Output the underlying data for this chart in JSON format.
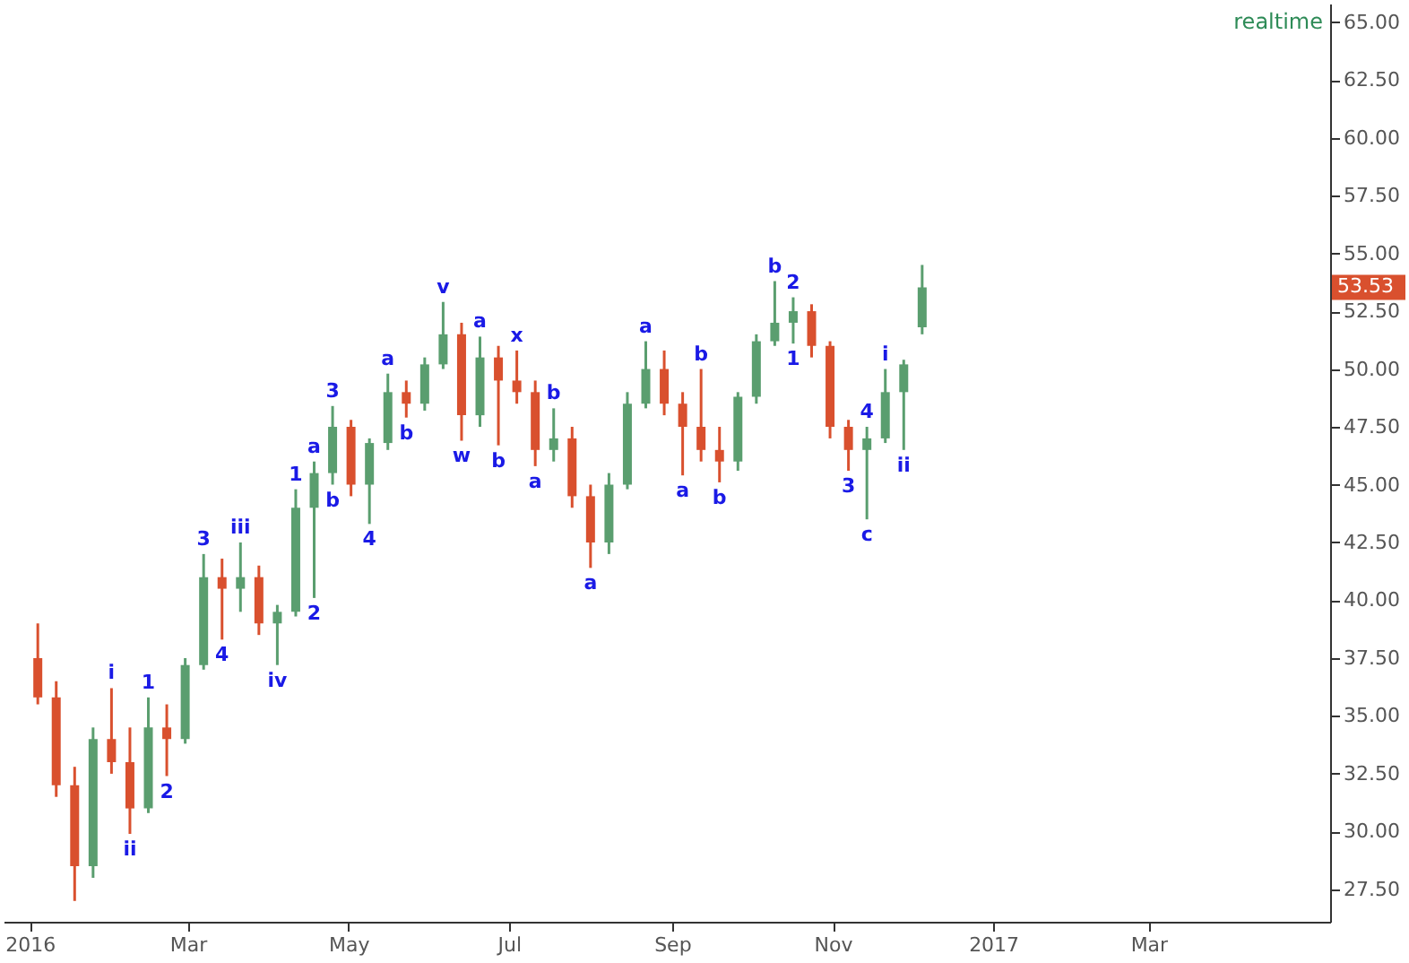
{
  "chart_data": {
    "type": "candlestick",
    "x": [
      "2016-01-04",
      "2016-01-11",
      "2016-01-18",
      "2016-01-25",
      "2016-02-01",
      "2016-02-08",
      "2016-02-15",
      "2016-02-22",
      "2016-02-29",
      "2016-03-07",
      "2016-03-14",
      "2016-03-21",
      "2016-03-28",
      "2016-04-04",
      "2016-04-11",
      "2016-04-18",
      "2016-04-25",
      "2016-05-02",
      "2016-05-09",
      "2016-05-16",
      "2016-05-23",
      "2016-05-30",
      "2016-06-06",
      "2016-06-13",
      "2016-06-20",
      "2016-06-27",
      "2016-07-04",
      "2016-07-11",
      "2016-07-18",
      "2016-07-25",
      "2016-08-01",
      "2016-08-08",
      "2016-08-15",
      "2016-08-22",
      "2016-08-29",
      "2016-09-05",
      "2016-09-12",
      "2016-09-19",
      "2016-09-26",
      "2016-10-03",
      "2016-10-10",
      "2016-10-17",
      "2016-10-24",
      "2016-10-31",
      "2016-11-07",
      "2016-11-14",
      "2016-11-21",
      "2016-11-28",
      "2016-12-05"
    ],
    "ohlc": [
      [
        37.5,
        39.0,
        35.5,
        35.8
      ],
      [
        35.8,
        36.5,
        31.5,
        32.0
      ],
      [
        32.0,
        32.8,
        27.0,
        28.5
      ],
      [
        28.5,
        34.5,
        28.0,
        34.0
      ],
      [
        34.0,
        36.2,
        32.5,
        33.0
      ],
      [
        33.0,
        34.5,
        29.9,
        31.0
      ],
      [
        31.0,
        35.8,
        30.8,
        34.5
      ],
      [
        34.5,
        35.5,
        32.4,
        34.0
      ],
      [
        34.0,
        37.5,
        33.8,
        37.2
      ],
      [
        37.2,
        42.0,
        37.0,
        41.0
      ],
      [
        41.0,
        41.8,
        38.3,
        40.5
      ],
      [
        40.5,
        42.5,
        39.5,
        41.0
      ],
      [
        41.0,
        41.5,
        38.5,
        39.0
      ],
      [
        39.0,
        39.8,
        37.2,
        39.5
      ],
      [
        39.5,
        44.8,
        39.3,
        44.0
      ],
      [
        44.0,
        46.0,
        40.1,
        45.5
      ],
      [
        45.5,
        48.4,
        45.0,
        47.5
      ],
      [
        47.5,
        47.8,
        44.5,
        45.0
      ],
      [
        45.0,
        47.0,
        43.3,
        46.8
      ],
      [
        46.8,
        49.8,
        46.5,
        49.0
      ],
      [
        49.0,
        49.5,
        47.9,
        48.5
      ],
      [
        48.5,
        50.5,
        48.2,
        50.2
      ],
      [
        50.2,
        52.9,
        50.0,
        51.5
      ],
      [
        51.5,
        52.0,
        46.9,
        48.0
      ],
      [
        48.0,
        51.4,
        47.5,
        50.5
      ],
      [
        50.5,
        51.0,
        46.7,
        49.5
      ],
      [
        49.5,
        50.8,
        48.5,
        49.0
      ],
      [
        49.0,
        49.5,
        45.8,
        46.5
      ],
      [
        46.5,
        48.3,
        46.0,
        47.0
      ],
      [
        47.0,
        47.5,
        44.0,
        44.5
      ],
      [
        44.5,
        45.0,
        41.4,
        42.5
      ],
      [
        42.5,
        45.5,
        42.0,
        45.0
      ],
      [
        45.0,
        49.0,
        44.8,
        48.5
      ],
      [
        48.5,
        51.2,
        48.3,
        50.0
      ],
      [
        50.0,
        50.8,
        48.0,
        48.5
      ],
      [
        48.5,
        49.0,
        45.4,
        47.5
      ],
      [
        47.5,
        50.0,
        46.0,
        46.5
      ],
      [
        46.5,
        47.5,
        45.1,
        46.0
      ],
      [
        46.0,
        49.0,
        45.6,
        48.8
      ],
      [
        48.8,
        51.5,
        48.5,
        51.2
      ],
      [
        51.2,
        53.8,
        51.0,
        52.0
      ],
      [
        52.0,
        53.1,
        51.1,
        52.5
      ],
      [
        52.5,
        52.8,
        50.5,
        51.0
      ],
      [
        51.0,
        51.2,
        47.0,
        47.5
      ],
      [
        47.5,
        47.8,
        45.6,
        46.5
      ],
      [
        46.5,
        47.5,
        43.5,
        47.0
      ],
      [
        47.0,
        50.0,
        46.8,
        49.0
      ],
      [
        49.0,
        50.4,
        46.5,
        50.2
      ],
      [
        51.8,
        54.5,
        51.5,
        53.53
      ]
    ],
    "colors": [
      "#d9502e",
      "#d9502e",
      "#d9502e",
      "#5a9e6f",
      "#d9502e",
      "#d9502e",
      "#5a9e6f",
      "#d9502e",
      "#5a9e6f",
      "#5a9e6f",
      "#d9502e",
      "#5a9e6f",
      "#d9502e",
      "#5a9e6f",
      "#5a9e6f",
      "#5a9e6f",
      "#5a9e6f",
      "#d9502e",
      "#5a9e6f",
      "#5a9e6f",
      "#d9502e",
      "#5a9e6f",
      "#5a9e6f",
      "#d9502e",
      "#5a9e6f",
      "#d9502e",
      "#d9502e",
      "#d9502e",
      "#5a9e6f",
      "#d9502e",
      "#d9502e",
      "#5a9e6f",
      "#5a9e6f",
      "#5a9e6f",
      "#d9502e",
      "#d9502e",
      "#d9502e",
      "#d9502e",
      "#5a9e6f",
      "#5a9e6f",
      "#5a9e6f",
      "#5a9e6f",
      "#d9502e",
      "#d9502e",
      "#d9502e",
      "#5a9e6f",
      "#5a9e6f",
      "#5a9e6f",
      "#5a9e6f"
    ],
    "xlim": [
      "2015-12-22",
      "2017-05-09"
    ],
    "xticks": [
      {
        "value": "2016-01-01",
        "label": "2016"
      },
      {
        "value": "2016-03-01",
        "label": "Mar"
      },
      {
        "value": "2016-05-01",
        "label": "May"
      },
      {
        "value": "2016-07-01",
        "label": "Jul"
      },
      {
        "value": "2016-09-01",
        "label": "Sep"
      },
      {
        "value": "2016-11-01",
        "label": "Nov"
      },
      {
        "value": "2017-01-01",
        "label": "2017"
      },
      {
        "value": "2017-03-01",
        "label": "Mar"
      }
    ],
    "ylim": [
      26.1,
      65.8
    ],
    "yticks": [
      {
        "value": 27.5,
        "label": "27.50"
      },
      {
        "value": 30,
        "label": "30.00"
      },
      {
        "value": 32.5,
        "label": "32.50"
      },
      {
        "value": 35,
        "label": "35.00"
      },
      {
        "value": 37.5,
        "label": "37.50"
      },
      {
        "value": 40,
        "label": "40.00"
      },
      {
        "value": 42.5,
        "label": "42.50"
      },
      {
        "value": 45,
        "label": "45.00"
      },
      {
        "value": 47.5,
        "label": "47.50"
      },
      {
        "value": 50,
        "label": "50.00"
      },
      {
        "value": 52.5,
        "label": "52.50"
      },
      {
        "value": 55,
        "label": "55.00"
      },
      {
        "value": 57.5,
        "label": "57.50"
      },
      {
        "value": 60,
        "label": "60.00"
      },
      {
        "value": 62.5,
        "label": "62.50"
      },
      {
        "value": 65,
        "label": "65.00"
      }
    ],
    "grid": false,
    "ref_lines": [
      {
        "axis": "y",
        "value": 53.53,
        "label": "53.53",
        "color": "#d9502e"
      }
    ],
    "annotations": [
      "realtime",
      {
        "text": "i",
        "x": "2016-02-01",
        "y": 36.2
      },
      {
        "text": "ii",
        "x": "2016-02-08",
        "y": 29.9
      },
      {
        "text": "1",
        "x": "2016-02-15",
        "y": 35.8
      },
      {
        "text": "2",
        "x": "2016-02-22",
        "y": 32.4
      },
      {
        "text": "3",
        "x": "2016-03-07",
        "y": 42.0
      },
      {
        "text": "4",
        "x": "2016-03-14",
        "y": 38.3
      },
      {
        "text": "iii",
        "x": "2016-03-21",
        "y": 42.5
      },
      {
        "text": "iv",
        "x": "2016-04-04",
        "y": 37.2
      },
      {
        "text": "1",
        "x": "2016-04-11",
        "y": 44.8
      },
      {
        "text": "2",
        "x": "2016-04-18",
        "y": 40.1
      },
      {
        "text": "a",
        "x": "2016-04-18",
        "y": 46.0
      },
      {
        "text": "b",
        "x": "2016-04-25",
        "y": 45.0
      },
      {
        "text": "3",
        "x": "2016-04-25",
        "y": 48.4
      },
      {
        "text": "4",
        "x": "2016-05-09",
        "y": 43.3
      },
      {
        "text": "a",
        "x": "2016-05-16",
        "y": 49.8
      },
      {
        "text": "b",
        "x": "2016-05-23",
        "y": 47.9
      },
      {
        "text": "v",
        "x": "2016-06-06",
        "y": 52.9
      },
      {
        "text": "w",
        "x": "2016-06-13",
        "y": 46.9
      },
      {
        "text": "a",
        "x": "2016-06-20",
        "y": 51.4
      },
      {
        "text": "b",
        "x": "2016-06-27",
        "y": 46.7
      },
      {
        "text": "x",
        "x": "2016-07-04",
        "y": 50.8
      },
      {
        "text": "a",
        "x": "2016-07-11",
        "y": 45.8
      },
      {
        "text": "b",
        "x": "2016-07-18",
        "y": 48.3
      },
      {
        "text": "a",
        "x": "2016-08-01",
        "y": 41.4
      },
      {
        "text": "a",
        "x": "2016-08-22",
        "y": 51.2
      },
      {
        "text": "a",
        "x": "2016-09-05",
        "y": 45.4
      },
      {
        "text": "b",
        "x": "2016-09-12",
        "y": 50.0
      },
      {
        "text": "b",
        "x": "2016-09-19",
        "y": 45.1
      },
      {
        "text": "b",
        "x": "2016-10-10",
        "y": 53.8
      },
      {
        "text": "1",
        "x": "2016-10-17",
        "y": 51.1
      },
      {
        "text": "2",
        "x": "2016-10-17",
        "y": 53.1
      },
      {
        "text": "3",
        "x": "2016-11-07",
        "y": 45.6
      },
      {
        "text": "4",
        "x": "2016-11-14",
        "y": 47.5
      },
      {
        "text": "c",
        "x": "2016-11-14",
        "y": 43.5
      },
      {
        "text": "i",
        "x": "2016-11-21",
        "y": 50.0
      },
      {
        "text": "ii",
        "x": "2016-11-28",
        "y": 46.5
      }
    ]
  }
}
